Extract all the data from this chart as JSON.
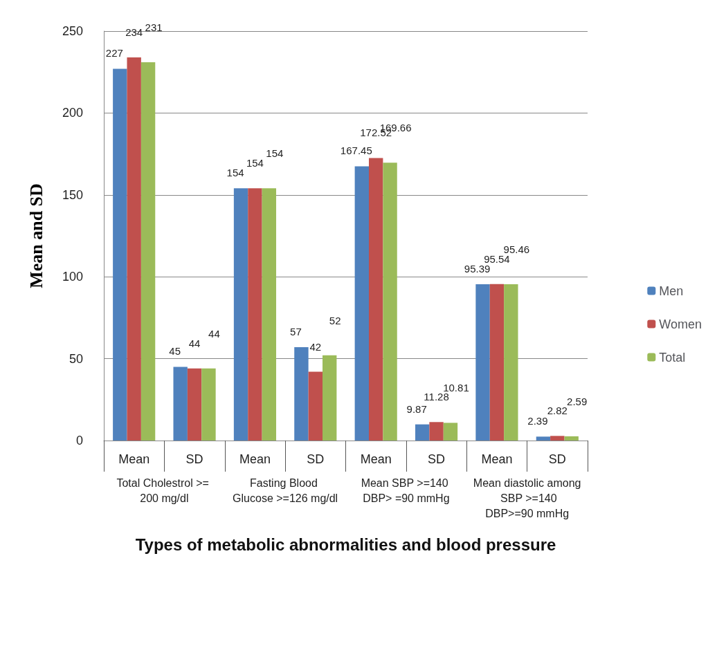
{
  "chart_data": {
    "type": "bar",
    "xlabel": "Types of metabolic abnormalities and blood pressure",
    "ylabel": "Mean and SD",
    "categories": [
      "Mean",
      "SD",
      "Mean",
      "SD",
      "Mean",
      "SD",
      "Mean",
      "SD"
    ],
    "series": [
      {
        "name": "Men",
        "color": "#4f81bd",
        "values": [
          227,
          45,
          154,
          57,
          167.45,
          9.87,
          95.39,
          2.39
        ]
      },
      {
        "name": "Women",
        "color": "#c0504d",
        "values": [
          234,
          44,
          154,
          42,
          172.52,
          11.28,
          95.54,
          2.82
        ]
      },
      {
        "name": "Total",
        "color": "#9bbb59",
        "values": [
          231,
          44,
          154,
          52,
          169.66,
          10.81,
          95.46,
          2.59
        ]
      }
    ],
    "annotations": [
      "Total Cholestrol >= 200 mg/dl",
      "Fasting Blood Glucose >=126 mg/dl",
      "Mean SBP >=140 DBP> =90 mmHg",
      "Mean diastolic among  SBP >=140 DBP>=90 mmHg"
    ],
    "ylim": [
      0,
      250
    ],
    "yticks": [
      0,
      50,
      100,
      150,
      200,
      250
    ],
    "grid": "y",
    "legend": "right",
    "data_labels": true
  }
}
